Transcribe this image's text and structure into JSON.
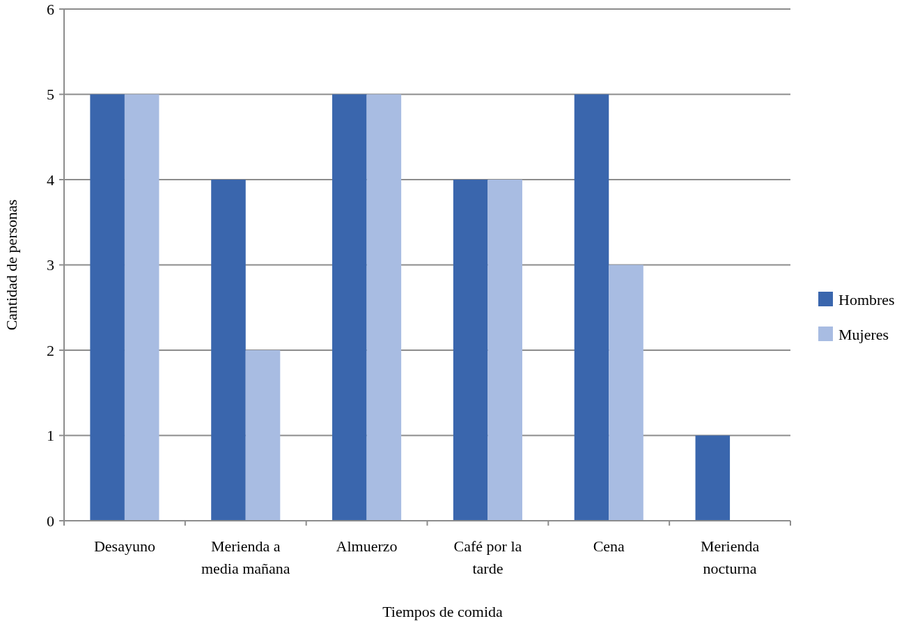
{
  "chart_data": {
    "type": "bar",
    "xlabel": "Tiempos de comida",
    "ylabel": "Cantidad de personas",
    "categories": [
      "Desayuno",
      "Merienda a media mañana",
      "Almuerzo",
      "Café por la tarde",
      "Cena",
      "Merienda nocturna"
    ],
    "series": [
      {
        "name": "Hombres",
        "color": "#3a66ad",
        "values": [
          5,
          4,
          5,
          4,
          5,
          1
        ]
      },
      {
        "name": "Mujeres",
        "color": "#a8bce2",
        "values": [
          5,
          2,
          5,
          4,
          3,
          0
        ]
      }
    ],
    "ylim": [
      0,
      6
    ],
    "yticks": [
      0,
      1,
      2,
      3,
      4,
      5,
      6
    ],
    "grid": "y",
    "legend": "right"
  }
}
